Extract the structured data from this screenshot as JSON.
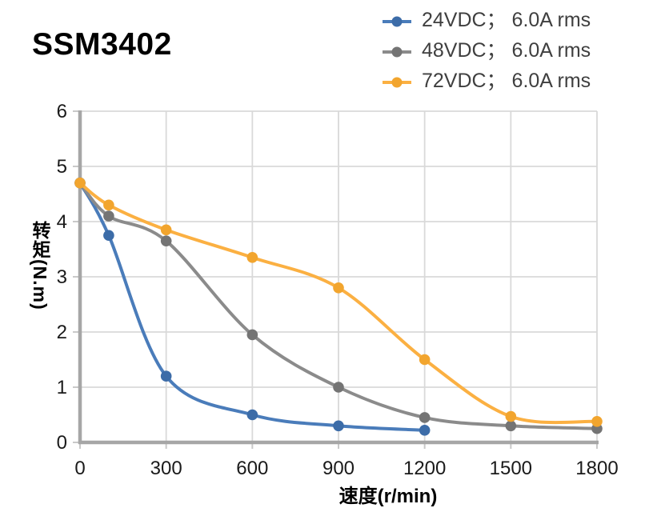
{
  "title": "SSM3402",
  "chart_data": {
    "type": "line",
    "title": "SSM3402",
    "xlabel": "速度(r/min)",
    "ylabel": "转矩(N.m)",
    "xlim": [
      0,
      1800
    ],
    "ylim": [
      0,
      6
    ],
    "x_ticks": [
      0,
      300,
      600,
      900,
      1200,
      1500,
      1800
    ],
    "y_ticks": [
      0,
      1,
      2,
      3,
      4,
      5,
      6
    ],
    "grid": true,
    "legend_position": "top-right",
    "series": [
      {
        "name": "24VDC； 6.0A rms",
        "color": "#4a7cba",
        "marker_color": "#3c6ca8",
        "x": [
          0,
          100,
          300,
          600,
          900,
          1200
        ],
        "y": [
          4.7,
          3.75,
          1.2,
          0.5,
          0.3,
          0.22
        ]
      },
      {
        "name": "48VDC； 6.0A rms",
        "color": "#8b8b8b",
        "marker_color": "#747474",
        "x": [
          0,
          100,
          300,
          600,
          900,
          1200,
          1500,
          1800
        ],
        "y": [
          4.7,
          4.1,
          3.65,
          1.95,
          1.0,
          0.45,
          0.3,
          0.25
        ]
      },
      {
        "name": "72VDC； 6.0A rms",
        "color": "#fbb042",
        "marker_color": "#f2a52e",
        "x": [
          0,
          100,
          300,
          600,
          900,
          1200,
          1500,
          1800
        ],
        "y": [
          4.7,
          4.3,
          3.85,
          3.35,
          2.8,
          1.5,
          0.47,
          0.38
        ]
      }
    ]
  },
  "styles": {
    "grid_color": "#d9d9d9",
    "tick_color": "#c9c9c9",
    "axis_color": "#a6a6a6",
    "tick_label_color": "#1a1a1a",
    "legend_text_color": "#3f3f3f"
  }
}
